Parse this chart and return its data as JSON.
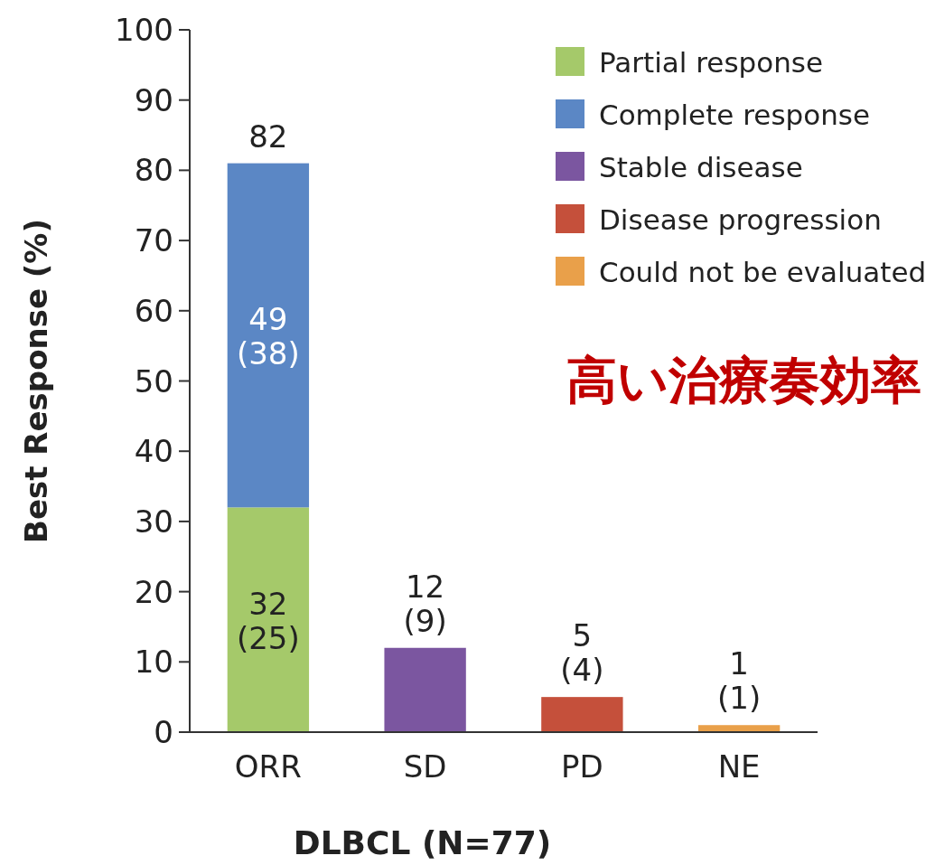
{
  "chart_data": {
    "type": "bar",
    "stacked": true,
    "xlabel": "DLBCL (N=77)",
    "ylabel": "Best Response (%)",
    "categories": [
      "ORR",
      "SD",
      "PD",
      "NE"
    ],
    "series": [
      {
        "name": "Partial response",
        "color": "#a5c96a",
        "values": [
          32,
          null,
          null,
          null
        ],
        "value_labels": [
          "32\n(25)",
          null,
          null,
          null
        ]
      },
      {
        "name": "Complete response",
        "color": "#5b87c5",
        "values": [
          49,
          null,
          null,
          null
        ],
        "value_labels": [
          "49\n(38)",
          null,
          null,
          null
        ]
      },
      {
        "name": "Stable disease",
        "color": "#7b56a0",
        "values": [
          null,
          12,
          null,
          null
        ],
        "value_labels": [
          null,
          "12\n(9)",
          null,
          null
        ]
      },
      {
        "name": "Disease progression",
        "color": "#c5503b",
        "values": [
          null,
          null,
          5,
          null
        ],
        "value_labels": [
          null,
          null,
          "5\n(4)",
          null
        ]
      },
      {
        "name": "Could not be evaluated",
        "color": "#e9a04a",
        "values": [
          null,
          null,
          null,
          1
        ],
        "value_labels": [
          null,
          null,
          null,
          "1\n(1)"
        ]
      }
    ],
    "totals": [
      "82",
      null,
      null,
      null
    ],
    "ylim": [
      0,
      100
    ],
    "yticks": [
      0,
      10,
      20,
      30,
      40,
      50,
      60,
      70,
      80,
      90,
      100
    ],
    "grid": false,
    "legend": "top right",
    "annotations": [
      "高い治療奏効率"
    ]
  }
}
